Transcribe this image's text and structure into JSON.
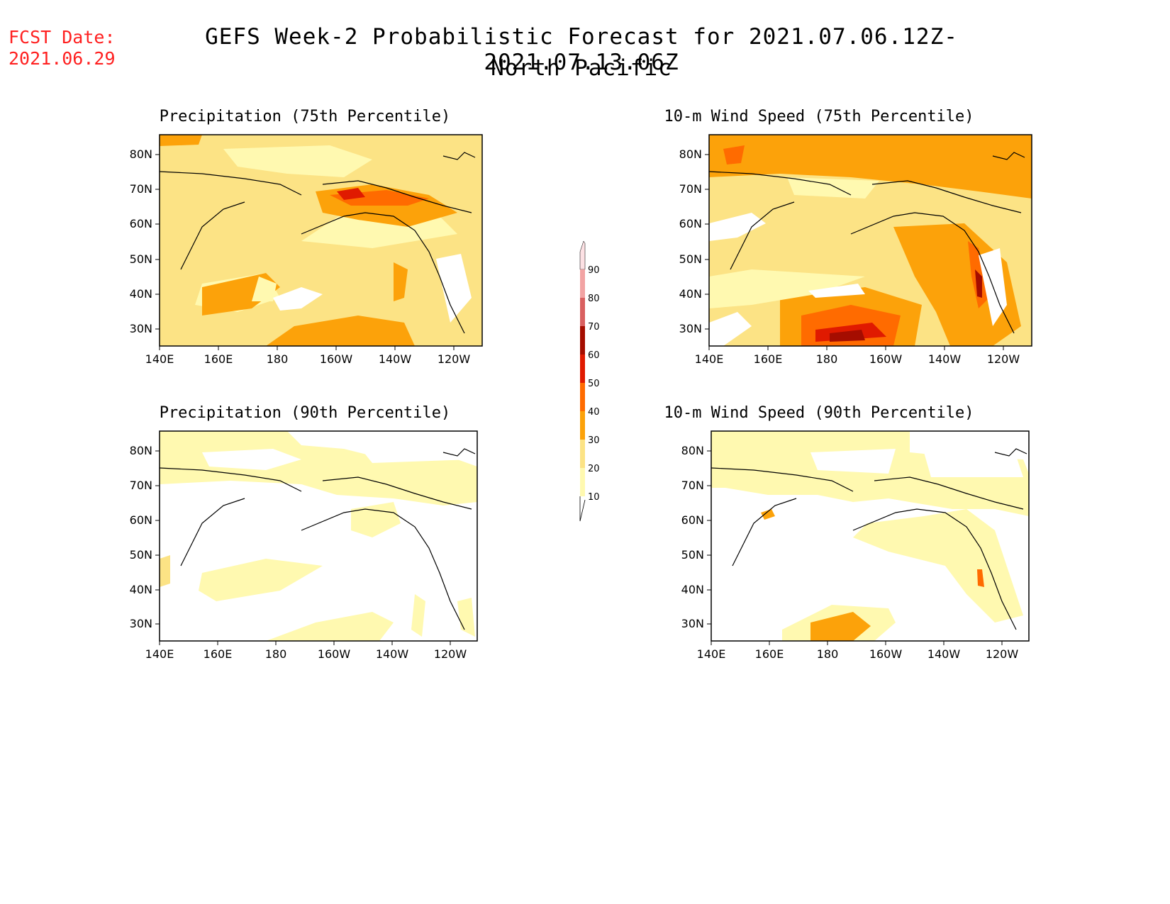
{
  "fcst_label": "FCST Date:",
  "fcst_date": "2021.06.29",
  "title": "GEFS Week-2 Probabilistic Forecast for 2021.07.06.12Z-2021.07.13.06Z",
  "region": "North Pacific",
  "colors": {
    "levels": [
      10,
      20,
      30,
      40,
      50,
      60,
      70,
      80,
      90
    ],
    "fills": [
      "#fff9b0",
      "#fce385",
      "#fca20a",
      "#ff6b00",
      "#e01a00",
      "#a50d00",
      "#d96060",
      "#f2a3a3",
      "#fde1e4"
    ]
  },
  "axes": {
    "lon_ticks": [
      "140E",
      "160E",
      "180",
      "160W",
      "140W",
      "120W"
    ],
    "lat_ticks": [
      "80N",
      "70N",
      "60N",
      "50N",
      "40N",
      "30N"
    ]
  },
  "panels": [
    {
      "id": "precip75",
      "title": "Precipitation (75th Percentile)"
    },
    {
      "id": "wind75",
      "title": "10-m Wind Speed (75th Percentile)"
    },
    {
      "id": "precip90",
      "title": "Precipitation (90th Percentile)"
    },
    {
      "id": "wind90",
      "title": "10-m Wind Speed (90th Percentile)"
    }
  ],
  "colorbar": {
    "labels": [
      "90",
      "80",
      "70",
      "60",
      "50",
      "40",
      "30",
      "20",
      "10"
    ]
  }
}
